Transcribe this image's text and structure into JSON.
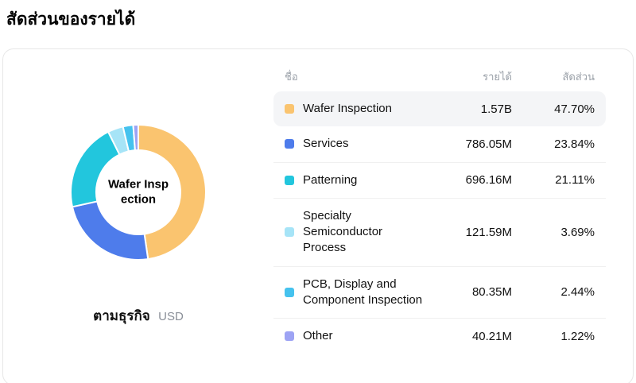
{
  "page": {
    "title": "สัดส่วนของรายได้"
  },
  "chart_data": {
    "type": "pie",
    "subtype": "donut",
    "title": "สัดส่วนของรายได้",
    "caption": "ตามธุรกิจ",
    "currency": "USD",
    "categories": [
      "Wafer Inspection",
      "Services",
      "Patterning",
      "Specialty Semiconductor Process",
      "PCB, Display and Component Inspection",
      "Other"
    ],
    "values_musd": [
      1570,
      786.05,
      696.16,
      121.59,
      80.35,
      40.21
    ],
    "value_labels": [
      "1.57B",
      "786.05M",
      "696.16M",
      "121.59M",
      "80.35M",
      "40.21M"
    ],
    "percents": [
      47.7,
      23.84,
      21.11,
      3.69,
      2.44,
      1.22
    ],
    "percent_labels": [
      "47.70%",
      "23.84%",
      "21.11%",
      "3.69%",
      "2.44%",
      "1.22%"
    ],
    "colors": [
      "#FAC46F",
      "#4E7CEB",
      "#22C6DD",
      "#A6E4F7",
      "#45C2EE",
      "#9DA3F4"
    ],
    "start_angle_deg": -90,
    "selected_index": 0,
    "legend_position": "right-table"
  },
  "donut": {
    "center_label_line1": "Wafer Insp",
    "center_label_line2": "ection",
    "caption_label": "ตามธุรกิจ",
    "caption_unit": "USD"
  },
  "table": {
    "headers": {
      "name": "ชื่อ",
      "revenue": "รายได้",
      "share": "สัดส่วน"
    },
    "rows": [
      {
        "name": "Wafer Inspection",
        "revenue": "1.57B",
        "share": "47.70%"
      },
      {
        "name": "Services",
        "revenue": "786.05M",
        "share": "23.84%"
      },
      {
        "name": "Patterning",
        "revenue": "696.16M",
        "share": "21.11%"
      },
      {
        "name": "Specialty Semiconductor Process",
        "revenue": "121.59M",
        "share": "3.69%"
      },
      {
        "name": "PCB, Display and Component Inspection",
        "revenue": "80.35M",
        "share": "2.44%"
      },
      {
        "name": "Other",
        "revenue": "40.21M",
        "share": "1.22%"
      }
    ]
  }
}
